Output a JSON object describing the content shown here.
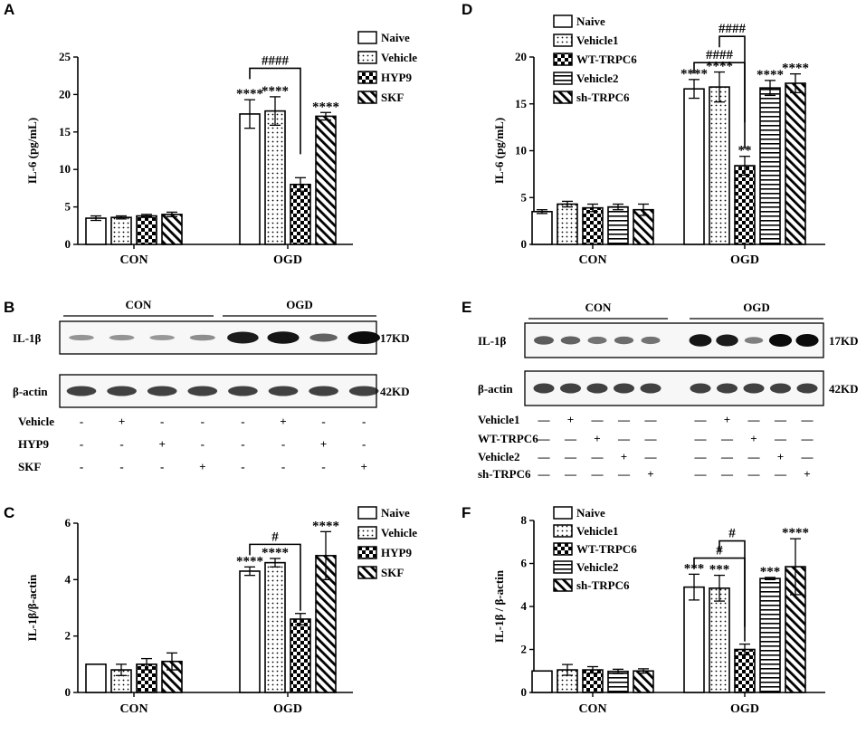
{
  "colors": {
    "ink": "#000000",
    "background": "#ffffff",
    "blot_bg": "#ffffff",
    "band": "#0b0b0b"
  },
  "patterns": [
    "blank",
    "dots",
    "checker",
    "hlines",
    "diag"
  ],
  "chart_data": [
    {
      "panel": "A",
      "type": "bar",
      "categories": [
        "CON",
        "OGD"
      ],
      "ylabel": "IL-6 (pg/mL)",
      "ylim": [
        0,
        25
      ],
      "yticks": [
        "0",
        "5",
        "10",
        "15",
        "20",
        "25"
      ],
      "legend_position": "top-right",
      "series": [
        {
          "name": "Naive",
          "pattern": "blank",
          "values": [
            3.5,
            17.4
          ],
          "errors": [
            0.3,
            1.9
          ],
          "sig": [
            "",
            "****"
          ]
        },
        {
          "name": "Vehicle",
          "pattern": "dots",
          "values": [
            3.6,
            17.8
          ],
          "errors": [
            0.2,
            1.9
          ],
          "sig": [
            "",
            "****"
          ]
        },
        {
          "name": "HYP9",
          "pattern": "checker",
          "values": [
            3.8,
            8.0
          ],
          "errors": [
            0.2,
            0.9
          ],
          "sig": [
            "",
            ""
          ]
        },
        {
          "name": "SKF",
          "pattern": "diag",
          "values": [
            4.0,
            17.1
          ],
          "errors": [
            0.3,
            0.5
          ],
          "sig": [
            "",
            "****"
          ]
        }
      ],
      "comparisons": [
        {
          "from": 0,
          "to": 2,
          "label": "####",
          "level": 23.5
        }
      ]
    },
    {
      "panel": "C",
      "type": "bar",
      "categories": [
        "CON",
        "OGD"
      ],
      "ylabel": "IL-1β/β-actin",
      "ylim": [
        0,
        6
      ],
      "yticks": [
        "0",
        "2",
        "4",
        "6"
      ],
      "legend_position": "top-right",
      "series": [
        {
          "name": "Naive",
          "pattern": "blank",
          "values": [
            1.0,
            4.3
          ],
          "errors": [
            0.0,
            0.15
          ],
          "sig": [
            "",
            "****"
          ]
        },
        {
          "name": "Vehicle",
          "pattern": "dots",
          "values": [
            0.8,
            4.6
          ],
          "errors": [
            0.2,
            0.15
          ],
          "sig": [
            "",
            "****"
          ]
        },
        {
          "name": "HYP9",
          "pattern": "checker",
          "values": [
            1.0,
            2.6
          ],
          "errors": [
            0.2,
            0.2
          ],
          "sig": [
            "",
            ""
          ]
        },
        {
          "name": "SKF",
          "pattern": "diag",
          "values": [
            1.1,
            4.85
          ],
          "errors": [
            0.3,
            0.85
          ],
          "sig": [
            "",
            "****"
          ]
        }
      ],
      "comparisons": [
        {
          "from": 0,
          "to": 2,
          "label": "#",
          "level": 5.25
        }
      ]
    },
    {
      "panel": "D",
      "type": "bar",
      "categories": [
        "CON",
        "OGD"
      ],
      "ylabel": "IL-6 (pg/mL)",
      "ylim": [
        0,
        20
      ],
      "yticks": [
        "0",
        "5",
        "10",
        "15",
        "20"
      ],
      "legend_position": "top-left",
      "series": [
        {
          "name": "Naive",
          "pattern": "blank",
          "values": [
            3.5,
            16.6
          ],
          "errors": [
            0.2,
            1.0
          ],
          "sig": [
            "",
            "****"
          ]
        },
        {
          "name": "Vehicle1",
          "pattern": "dots",
          "values": [
            4.3,
            16.8
          ],
          "errors": [
            0.3,
            1.6
          ],
          "sig": [
            "",
            "****"
          ]
        },
        {
          "name": "WT-TRPC6",
          "pattern": "checker",
          "values": [
            3.9,
            8.4
          ],
          "errors": [
            0.4,
            1.0
          ],
          "sig": [
            "",
            "**"
          ]
        },
        {
          "name": "Vehicle2",
          "pattern": "hlines",
          "values": [
            4.0,
            16.7
          ],
          "errors": [
            0.3,
            0.8
          ],
          "sig": [
            "",
            "****"
          ]
        },
        {
          "name": "sh-TRPC6",
          "pattern": "diag",
          "values": [
            3.7,
            17.2
          ],
          "errors": [
            0.6,
            1.0
          ],
          "sig": [
            "",
            "****"
          ]
        }
      ],
      "comparisons": [
        {
          "from": 0,
          "to": 2,
          "label": "####",
          "level": 19.4
        },
        {
          "from": 1,
          "to": 2,
          "label": "####",
          "level": 22.2
        }
      ]
    },
    {
      "panel": "F",
      "type": "bar",
      "categories": [
        "CON",
        "OGD"
      ],
      "ylabel": "IL-1β / β-actin",
      "ylim": [
        0,
        8
      ],
      "yticks": [
        "0",
        "2",
        "4",
        "6",
        "8"
      ],
      "legend_position": "top-left",
      "series": [
        {
          "name": "Naive",
          "pattern": "blank",
          "values": [
            1.0,
            4.9
          ],
          "errors": [
            0.0,
            0.6
          ],
          "sig": [
            "",
            "***"
          ]
        },
        {
          "name": "Vehicle1",
          "pattern": "dots",
          "values": [
            1.05,
            4.85
          ],
          "errors": [
            0.25,
            0.6
          ],
          "sig": [
            "",
            "***"
          ]
        },
        {
          "name": "WT-TRPC6",
          "pattern": "checker",
          "values": [
            1.05,
            2.0
          ],
          "errors": [
            0.15,
            0.25
          ],
          "sig": [
            "",
            ""
          ]
        },
        {
          "name": "Vehicle2",
          "pattern": "hlines",
          "values": [
            0.98,
            5.3
          ],
          "errors": [
            0.1,
            0.05
          ],
          "sig": [
            "",
            "***"
          ]
        },
        {
          "name": "sh-TRPC6",
          "pattern": "diag",
          "values": [
            1.0,
            5.85
          ],
          "errors": [
            0.1,
            1.3
          ],
          "sig": [
            "",
            "****"
          ]
        }
      ],
      "comparisons": [
        {
          "from": 0,
          "to": 2,
          "label": "#",
          "level": 6.25
        },
        {
          "from": 1,
          "to": 2,
          "label": "#",
          "level": 7.05
        }
      ]
    }
  ],
  "blots": [
    {
      "panel": "B",
      "groups": [
        "CON",
        "OGD"
      ],
      "lanes_per_group": 4,
      "rows": [
        {
          "label": "IL-1β",
          "size": "17KD",
          "intensity": [
            0.22,
            0.22,
            0.2,
            0.26,
            0.9,
            0.95,
            0.5,
            1.0
          ]
        },
        {
          "label": "β-actin",
          "size": "42KD",
          "intensity": [
            0.7,
            0.7,
            0.7,
            0.7,
            0.7,
            0.7,
            0.7,
            0.7
          ]
        }
      ],
      "treatments": [
        {
          "label": "Vehicle",
          "marks": [
            "-",
            "+",
            "-",
            "-",
            "-",
            "+",
            "-",
            "-"
          ]
        },
        {
          "label": "HYP9",
          "marks": [
            "-",
            "-",
            "+",
            "-",
            "-",
            "-",
            "+",
            "-"
          ]
        },
        {
          "label": "SKF",
          "marks": [
            "-",
            "-",
            "-",
            "+",
            "-",
            "-",
            "-",
            "+"
          ]
        }
      ]
    },
    {
      "panel": "E",
      "groups": [
        "CON",
        "OGD"
      ],
      "lanes_per_group": 5,
      "rows": [
        {
          "label": "IL-1β",
          "size": "17KD",
          "intensity": [
            0.55,
            0.5,
            0.42,
            0.45,
            0.42,
            0.95,
            0.9,
            0.35,
            1.0,
            1.0
          ]
        },
        {
          "label": "β-actin",
          "size": "42KD",
          "intensity": [
            0.7,
            0.7,
            0.7,
            0.7,
            0.7,
            0.7,
            0.7,
            0.7,
            0.7,
            0.7
          ]
        }
      ],
      "treatments": [
        {
          "label": "Vehicle1",
          "marks": [
            "—",
            "+",
            "—",
            "—",
            "—",
            "—",
            "+",
            "—",
            "—",
            "—"
          ]
        },
        {
          "label": "WT-TRPC6",
          "marks": [
            "—",
            "—",
            "+",
            "—",
            "—",
            "—",
            "—",
            "+",
            "—",
            "—"
          ]
        },
        {
          "label": "Vehicle2",
          "marks": [
            "—",
            "—",
            "—",
            "+",
            "—",
            "—",
            "—",
            "—",
            "+",
            "—"
          ]
        },
        {
          "label": "sh-TRPC6",
          "marks": [
            "—",
            "—",
            "—",
            "—",
            "+",
            "—",
            "—",
            "—",
            "—",
            "+"
          ]
        }
      ]
    }
  ]
}
